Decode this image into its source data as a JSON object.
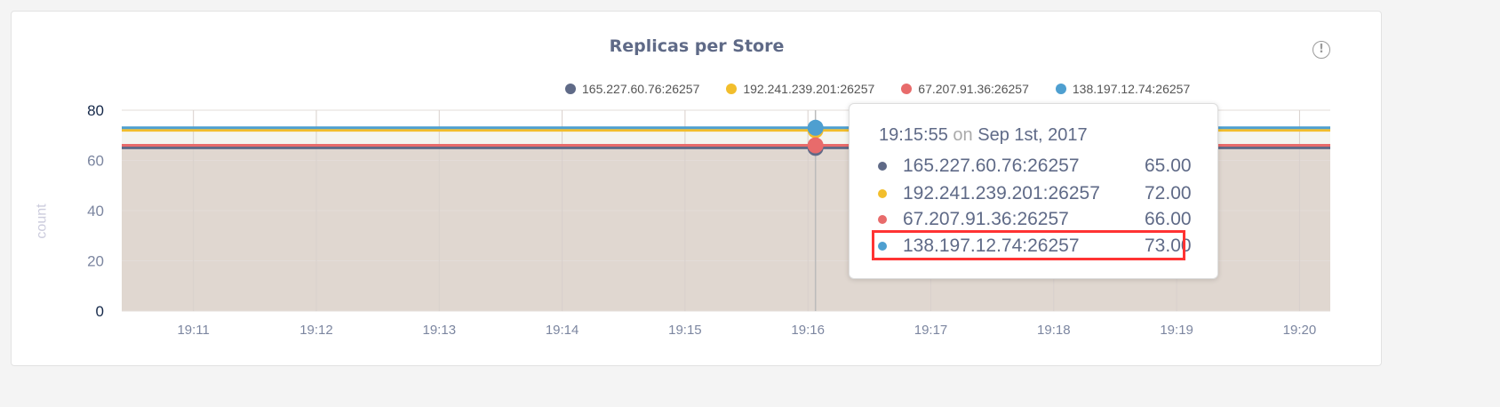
{
  "chart_data": {
    "type": "area",
    "title": "Replicas per Store",
    "ylabel": "count",
    "ylim": [
      0,
      80
    ],
    "yticks": [
      "0",
      "20",
      "40",
      "60",
      "80"
    ],
    "xlim": [
      "19:10:25",
      "19:20:15"
    ],
    "xticks": [
      "19:11",
      "19:12",
      "19:13",
      "19:14",
      "19:15",
      "19:16",
      "19:17",
      "19:18",
      "19:19",
      "19:20"
    ],
    "grid": true,
    "legend": "top",
    "series": [
      {
        "name": "165.227.60.76:26257",
        "color": "#5f6a87",
        "values": [
          65,
          65
        ]
      },
      {
        "name": "192.241.239.201:26257",
        "color": "#f2be2c",
        "values": [
          72,
          72
        ]
      },
      {
        "name": "67.207.91.36:26257",
        "color": "#e86b6b",
        "values": [
          66,
          66
        ]
      },
      {
        "name": "138.197.12.74:26257",
        "color": "#4e9fd0",
        "values": [
          73,
          73
        ]
      }
    ]
  },
  "tooltip": {
    "time": "19:15:55",
    "on": "on",
    "date": "Sep 1st, 2017",
    "rows": [
      {
        "label": "165.227.60.76:26257",
        "value": "65.00"
      },
      {
        "label": "192.241.239.201:26257",
        "value": "72.00"
      },
      {
        "label": "67.207.91.36:26257",
        "value": "66.00"
      },
      {
        "label": "138.197.12.74:26257",
        "value": "73.00"
      }
    ],
    "highlighted_row": 3
  },
  "info_icon": "!"
}
